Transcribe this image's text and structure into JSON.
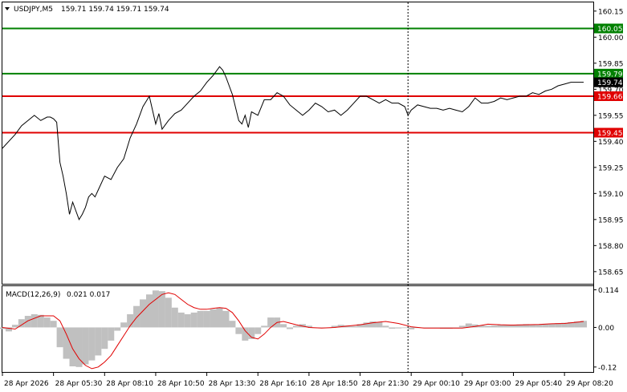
{
  "header": {
    "symbol_label": "USDJPY,M5",
    "ohlc_values": "159.71 159.74 159.71 159.74"
  },
  "macd_header": {
    "label": "MACD(12,26,9)",
    "values": "0.021 0.017"
  },
  "colors": {
    "background": "#ffffff",
    "price_line": "#000000",
    "support_resistance_red": "#e00000",
    "level_green": "#008000",
    "macd_histogram": "#c0c0c0",
    "macd_signal": "#e00000",
    "current_price_tag": "#000000",
    "grid_dotted": "#000000"
  },
  "icons": {
    "dropdown": "triangle-down-icon"
  },
  "chart_data": [
    {
      "type": "line",
      "name": "USDJPY M5 price chart",
      "ylim": [
        158.58,
        160.2
      ],
      "y_ticks": [
        160.15,
        160.0,
        159.85,
        159.7,
        159.55,
        159.4,
        159.25,
        159.1,
        158.95,
        158.8,
        158.65
      ],
      "x_tick_labels": [
        "28 Apr 2026",
        "28 Apr 05:30",
        "28 Apr 08:10",
        "28 Apr 10:50",
        "28 Apr 13:30",
        "28 Apr 16:10",
        "28 Apr 18:50",
        "28 Apr 21:30",
        "29 Apr 00:10",
        "29 Apr 03:00",
        "29 Apr 05:40",
        "29 Apr 08:20"
      ],
      "x_tick_positions": [
        0,
        16,
        32,
        48,
        64,
        80,
        96,
        112,
        128,
        144,
        160,
        176
      ],
      "x_range": [
        0,
        182
      ],
      "grid": false,
      "day_separator_x": 127,
      "series": [
        {
          "x": [
            0,
            2,
            4,
            6,
            8,
            10,
            12,
            14,
            15,
            16,
            17,
            18,
            19,
            20,
            21,
            22,
            23,
            24,
            25,
            26,
            27,
            28,
            29,
            30,
            32,
            34,
            36,
            38,
            40,
            42,
            44,
            46,
            47,
            48,
            49,
            50,
            52,
            54,
            56,
            58,
            60,
            62,
            64,
            66,
            68,
            69,
            70,
            71,
            72,
            74,
            75,
            76,
            77,
            78,
            80,
            82,
            84,
            86,
            88,
            90,
            92,
            94,
            96,
            98,
            100,
            102,
            104,
            106,
            108,
            110,
            112,
            114,
            116,
            118,
            120,
            122,
            124,
            126,
            127,
            128,
            130,
            132,
            134,
            136,
            138,
            140,
            142,
            144,
            146,
            148,
            150,
            152,
            154,
            156,
            158,
            160,
            162,
            164,
            166,
            168,
            170,
            172,
            174,
            176,
            178,
            180,
            182
          ],
          "values": [
            159.36,
            159.4,
            159.44,
            159.49,
            159.52,
            159.55,
            159.52,
            159.54,
            159.54,
            159.53,
            159.51,
            159.28,
            159.2,
            159.1,
            158.98,
            159.05,
            159.0,
            158.95,
            158.98,
            159.02,
            159.08,
            159.1,
            159.08,
            159.12,
            159.2,
            159.18,
            159.25,
            159.3,
            159.42,
            159.5,
            159.6,
            159.66,
            159.58,
            159.5,
            159.56,
            159.47,
            159.52,
            159.56,
            159.58,
            159.62,
            159.66,
            159.69,
            159.74,
            159.78,
            159.83,
            159.81,
            159.77,
            159.72,
            159.67,
            159.52,
            159.5,
            159.55,
            159.48,
            159.57,
            159.55,
            159.64,
            159.64,
            159.68,
            159.66,
            159.61,
            159.58,
            159.55,
            159.58,
            159.62,
            159.6,
            159.57,
            159.58,
            159.55,
            159.58,
            159.62,
            159.66,
            159.66,
            159.64,
            159.62,
            159.64,
            159.62,
            159.62,
            159.6,
            159.55,
            159.58,
            159.61,
            159.6,
            159.59,
            159.59,
            159.58,
            159.59,
            159.58,
            159.57,
            159.6,
            159.65,
            159.62,
            159.62,
            159.63,
            159.65,
            159.64,
            159.65,
            159.66,
            159.66,
            159.68,
            159.67,
            159.69,
            159.7,
            159.72,
            159.73,
            159.74,
            159.74,
            159.74
          ]
        }
      ],
      "horizontal_levels": [
        {
          "value": 160.05,
          "label": "160.05",
          "color": "#008000"
        },
        {
          "value": 159.79,
          "label": "159.79",
          "color": "#008000"
        },
        {
          "value": 159.66,
          "label": "159.66",
          "color": "#e00000"
        },
        {
          "value": 159.45,
          "label": "159.45",
          "color": "#e00000"
        }
      ],
      "current_price": {
        "value": 159.74,
        "label": "159.74"
      }
    },
    {
      "type": "bar",
      "name": "MACD(12,26,9)",
      "ylim": [
        -0.135,
        0.125
      ],
      "y_ticks": [
        0.114,
        0.0,
        -0.12
      ],
      "y_tick_labels": [
        "0.114",
        "0.00",
        "-0.12"
      ],
      "histogram": {
        "x": [
          0,
          2,
          4,
          6,
          8,
          10,
          12,
          14,
          16,
          18,
          20,
          22,
          24,
          26,
          28,
          30,
          32,
          34,
          36,
          38,
          40,
          42,
          44,
          46,
          48,
          50,
          52,
          54,
          56,
          58,
          60,
          62,
          64,
          66,
          68,
          70,
          72,
          74,
          76,
          78,
          80,
          82,
          84,
          86,
          88,
          90,
          92,
          94,
          96,
          98,
          100,
          102,
          104,
          106,
          108,
          110,
          112,
          114,
          116,
          118,
          120,
          122,
          124,
          126,
          128,
          130,
          132,
          134,
          136,
          138,
          140,
          142,
          144,
          146,
          148,
          150,
          152,
          154,
          156,
          158,
          160,
          162,
          164,
          166,
          168,
          170,
          172,
          174,
          176,
          178,
          180,
          182
        ],
        "values": [
          -0.005,
          -0.012,
          0.008,
          0.025,
          0.035,
          0.04,
          0.038,
          0.03,
          0.02,
          -0.06,
          -0.095,
          -0.118,
          -0.12,
          -0.112,
          -0.1,
          -0.085,
          -0.065,
          -0.04,
          -0.01,
          0.015,
          0.04,
          0.065,
          0.085,
          0.1,
          0.112,
          0.11,
          0.09,
          0.06,
          0.045,
          0.04,
          0.045,
          0.05,
          0.05,
          0.055,
          0.06,
          0.05,
          0.02,
          -0.02,
          -0.04,
          -0.035,
          -0.02,
          0.005,
          0.03,
          0.03,
          0.01,
          -0.005,
          0.005,
          0.01,
          0.005,
          0.0,
          0.0,
          -0.002,
          0.005,
          0.008,
          0.006,
          0.004,
          0.01,
          0.015,
          0.018,
          0.016,
          0.005,
          -0.004,
          -0.003,
          -0.002,
          -0.006,
          -0.002,
          -0.001,
          -0.002,
          -0.002,
          -0.004,
          -0.004,
          -0.003,
          0.005,
          0.012,
          0.009,
          0.006,
          0.005,
          0.006,
          0.008,
          0.008,
          0.008,
          0.009,
          0.01,
          0.009,
          0.009,
          0.011,
          0.012,
          0.013,
          0.014,
          0.016,
          0.018,
          0.02
        ]
      },
      "signal": {
        "x": [
          0,
          4,
          8,
          12,
          16,
          18,
          20,
          22,
          24,
          26,
          28,
          30,
          32,
          34,
          36,
          38,
          40,
          42,
          44,
          46,
          48,
          50,
          52,
          54,
          56,
          58,
          60,
          62,
          64,
          66,
          68,
          70,
          72,
          74,
          76,
          78,
          80,
          82,
          84,
          86,
          88,
          92,
          96,
          100,
          104,
          108,
          112,
          116,
          120,
          124,
          128,
          132,
          136,
          140,
          144,
          148,
          152,
          156,
          160,
          164,
          168,
          172,
          176,
          180,
          182
        ],
        "values": [
          0.0,
          -0.005,
          0.02,
          0.035,
          0.035,
          0.02,
          -0.02,
          -0.065,
          -0.095,
          -0.115,
          -0.125,
          -0.12,
          -0.105,
          -0.085,
          -0.055,
          -0.025,
          0.005,
          0.03,
          0.05,
          0.07,
          0.085,
          0.1,
          0.105,
          0.1,
          0.085,
          0.07,
          0.06,
          0.055,
          0.055,
          0.058,
          0.06,
          0.058,
          0.045,
          0.02,
          -0.01,
          -0.03,
          -0.035,
          -0.02,
          0.0,
          0.015,
          0.018,
          0.008,
          0.0,
          -0.002,
          0.0,
          0.004,
          0.008,
          0.014,
          0.018,
          0.012,
          0.002,
          -0.002,
          -0.002,
          -0.002,
          -0.002,
          0.003,
          0.01,
          0.008,
          0.007,
          0.008,
          0.009,
          0.011,
          0.012,
          0.016,
          0.018
        ]
      }
    }
  ]
}
